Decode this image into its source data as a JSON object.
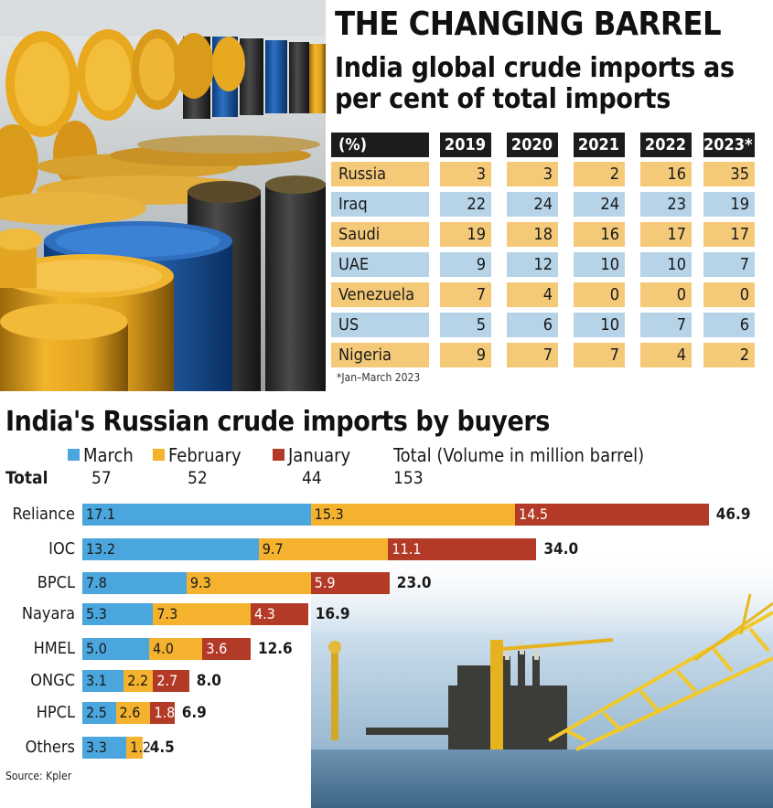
{
  "headline": "THE CHANGING BARREL",
  "subhead_line1": "India global crude imports as",
  "subhead_line2": "per cent of total imports",
  "table": {
    "unit_header": "(%)",
    "years": [
      "2019",
      "2020",
      "2021",
      "2022",
      "2023*"
    ],
    "rows": [
      {
        "country": "Russia",
        "values": [
          "3",
          "3",
          "2",
          "16",
          "35"
        ]
      },
      {
        "country": "Iraq",
        "values": [
          "22",
          "24",
          "24",
          "23",
          "19"
        ]
      },
      {
        "country": "Saudi",
        "values": [
          "19",
          "18",
          "16",
          "17",
          "17"
        ]
      },
      {
        "country": "UAE",
        "values": [
          "9",
          "12",
          "10",
          "10",
          "7"
        ]
      },
      {
        "country": "Venezuela",
        "values": [
          "7",
          "4",
          "0",
          "0",
          "0"
        ]
      },
      {
        "country": "US",
        "values": [
          "5",
          "6",
          "10",
          "7",
          "6"
        ]
      },
      {
        "country": "Nigeria",
        "values": [
          "9",
          "7",
          "7",
          "4",
          "2"
        ]
      }
    ],
    "footnote": "*Jan–March 2023",
    "colors": {
      "header": "#1c1c1c",
      "odd_row": "#f4c978",
      "even_row": "#b6d3e7"
    }
  },
  "chart_data": {
    "type": "bar",
    "orientation": "horizontal",
    "stacked": true,
    "title": "India's Russian crude imports by buyers",
    "unit_note": "(Volume in million barrel)",
    "categories": [
      "Reliance",
      "IOC",
      "BPCL",
      "Nayara",
      "HMEL",
      "ONGC",
      "HPCL",
      "Others"
    ],
    "series": [
      {
        "name": "March",
        "color": "#4aa6dd",
        "values": [
          17.1,
          13.2,
          7.8,
          5.3,
          5.0,
          3.1,
          2.5,
          3.3
        ]
      },
      {
        "name": "February",
        "color": "#f5b22e",
        "values": [
          15.3,
          9.7,
          9.3,
          7.3,
          4.0,
          2.2,
          2.6,
          1.2
        ]
      },
      {
        "name": "January",
        "color": "#b23a27",
        "values": [
          14.5,
          11.1,
          5.9,
          4.3,
          3.6,
          2.7,
          1.8,
          0
        ]
      }
    ],
    "series_totals": [
      "57",
      "52",
      "44"
    ],
    "totals": [
      46.9,
      34.0,
      23.0,
      16.9,
      12.6,
      8.0,
      6.9,
      4.5
    ],
    "grand_total": "153",
    "total_label": "Total",
    "legend_total_label": "Total",
    "legend_placement": "top"
  },
  "source": "Source: Kpler"
}
